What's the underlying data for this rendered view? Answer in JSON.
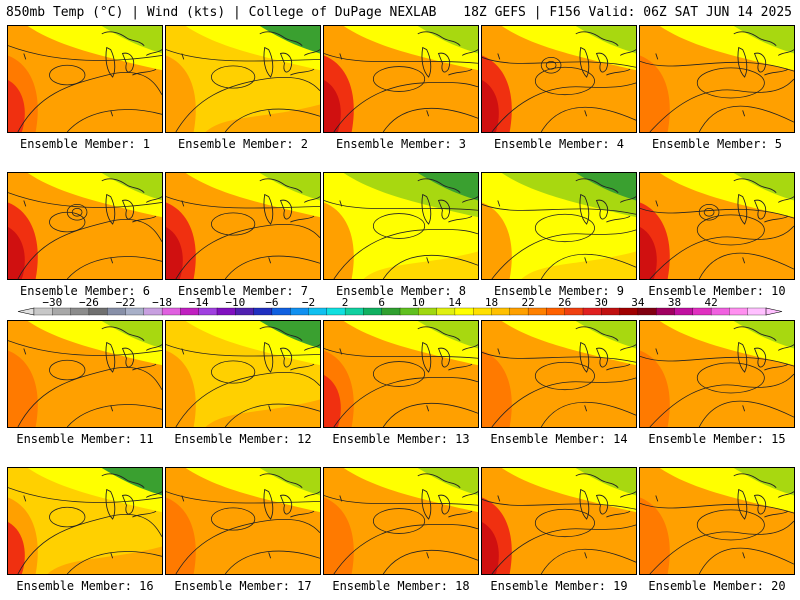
{
  "header": {
    "left": "850mb Temp (°C) | Wind (kts) | College of DuPage NEXLAB",
    "right": "18Z GEFS | F156 Valid: 06Z SAT JUN 14 2025"
  },
  "members": [
    {
      "label": "Ensemble Member: 1",
      "style": "warm"
    },
    {
      "label": "Ensemble Member: 2",
      "style": "mild"
    },
    {
      "label": "Ensemble Member: 3",
      "style": "hot"
    },
    {
      "label": "Ensemble Member: 4",
      "style": "hot"
    },
    {
      "label": "Ensemble Member: 5",
      "style": "warm"
    },
    {
      "label": "Ensemble Member: 6",
      "style": "hot"
    },
    {
      "label": "Ensemble Member: 7",
      "style": "hot"
    },
    {
      "label": "Ensemble Member: 8",
      "style": "cool"
    },
    {
      "label": "Ensemble Member: 9",
      "style": "cool"
    },
    {
      "label": "Ensemble Member: 10",
      "style": "hot"
    },
    {
      "label": "Ensemble Member: 11",
      "style": "warm"
    },
    {
      "label": "Ensemble Member: 12",
      "style": "mild"
    },
    {
      "label": "Ensemble Member: 13",
      "style": "warm"
    },
    {
      "label": "Ensemble Member: 14",
      "style": "warm"
    },
    {
      "label": "Ensemble Member: 15",
      "style": "warm"
    },
    {
      "label": "Ensemble Member: 16",
      "style": "mild"
    },
    {
      "label": "Ensemble Member: 17",
      "style": "warm"
    },
    {
      "label": "Ensemble Member: 18",
      "style": "warm"
    },
    {
      "label": "Ensemble Member: 19",
      "style": "hot"
    },
    {
      "label": "Ensemble Member: 20",
      "style": "warm"
    }
  ],
  "colorbar": {
    "labels": [
      "−30",
      "−26",
      "−22",
      "−18",
      "−14",
      "−10",
      "−6",
      "−2",
      "2",
      "6",
      "10",
      "14",
      "18",
      "22",
      "26",
      "30",
      "34",
      "38",
      "42"
    ],
    "colors": [
      "#c8c8c8",
      "#a8a8a8",
      "#8c8c8c",
      "#707070",
      "#8890a8",
      "#a8b0c8",
      "#c8a0e0",
      "#e060e0",
      "#c020c0",
      "#a040e0",
      "#8010c0",
      "#5020b0",
      "#2030c0",
      "#1060e0",
      "#1090f0",
      "#10c0f0",
      "#10e0e0",
      "#10d0a0",
      "#10b060",
      "#30a030",
      "#60c020",
      "#a0d810",
      "#e0f010",
      "#ffff00",
      "#ffe000",
      "#ffc000",
      "#ffa000",
      "#ff8000",
      "#ff6000",
      "#f04010",
      "#e02020",
      "#c01010",
      "#a00000",
      "#800010",
      "#a00060",
      "#c010a0",
      "#e030c0",
      "#f060e0",
      "#ff90f0",
      "#ffc0ff"
    ]
  },
  "colors": {
    "yellow": "#ffff00",
    "lightorange": "#ffd000",
    "orange": "#ffa000",
    "darkorange": "#ff7a00",
    "red": "#f03010",
    "green": "#3aa030",
    "lightgreen": "#a8d810",
    "contour": "#222222"
  }
}
